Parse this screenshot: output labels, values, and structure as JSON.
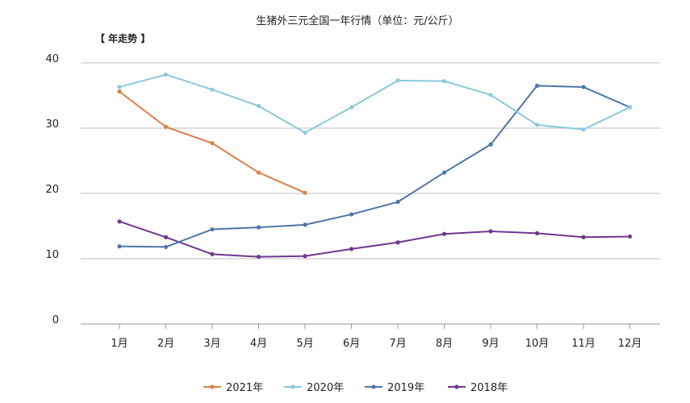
{
  "chart_data": {
    "type": "line",
    "title": "生猪外三元全国一年行情（单位：元/公斤）",
    "subtitle": "【 年走势 】",
    "categories": [
      "1月",
      "2月",
      "3月",
      "4月",
      "5月",
      "6月",
      "7月",
      "8月",
      "9月",
      "10月",
      "11月",
      "12月"
    ],
    "ylim": [
      0,
      40
    ],
    "yticks": [
      0,
      10,
      20,
      30,
      40
    ],
    "grid": true,
    "legend_position": "bottom",
    "series": [
      {
        "name": "2021年",
        "color": "#d9824a",
        "values": [
          35.6,
          30.2,
          27.7,
          23.2,
          20.1,
          null,
          null,
          null,
          null,
          null,
          null,
          null
        ]
      },
      {
        "name": "2020年",
        "color": "#88c9dc",
        "values": [
          36.3,
          38.2,
          35.9,
          33.4,
          29.3,
          33.2,
          37.3,
          37.2,
          35.1,
          30.5,
          29.8,
          33.2
        ]
      },
      {
        "name": "2019年",
        "color": "#4f75a8",
        "values": [
          11.9,
          11.8,
          14.5,
          14.8,
          15.2,
          16.8,
          18.7,
          23.2,
          27.5,
          36.5,
          36.3,
          33.2
        ]
      },
      {
        "name": "2018年",
        "color": "#6f3790",
        "values": [
          15.7,
          13.3,
          10.7,
          10.3,
          10.4,
          11.5,
          12.5,
          13.8,
          14.2,
          13.9,
          13.3,
          13.4
        ]
      }
    ]
  }
}
